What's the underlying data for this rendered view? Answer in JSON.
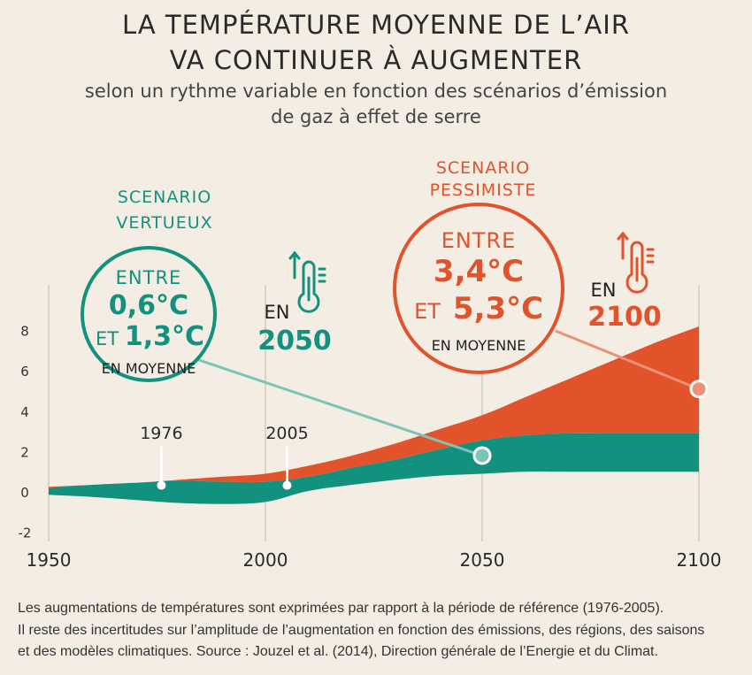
{
  "title_lines": [
    "LA TEMPÉRATURE MOYENNE DE L’AIR",
    "VA CONTINUER À AUGMENTER"
  ],
  "subtitle_lines": [
    "selon un rythme variable en fonction des scénarios d’émission",
    "de gaz à effet de serre"
  ],
  "colors": {
    "green": "#13917f",
    "orange": "#e2532b",
    "axis": "#dcd3c4",
    "background": "#f3ede3",
    "text": "#2a2a2a"
  },
  "chart_data": {
    "type": "area",
    "x_ticks": [
      "1950",
      "2000",
      "2050",
      "2100"
    ],
    "y_ticks": [
      "-2",
      "0",
      "2",
      "4",
      "6",
      "8"
    ],
    "xlim": [
      1950,
      2100
    ],
    "ylim": [
      -2,
      9
    ],
    "series": [
      {
        "color": "#13917f",
        "x": [
          1950,
          1960,
          1970,
          1980,
          1990,
          2000,
          2010,
          2020,
          2030,
          2040,
          2050,
          2060,
          2070,
          2080,
          2090,
          2100
        ],
        "lower": [
          -0.15,
          -0.25,
          -0.4,
          -0.55,
          -0.6,
          -0.5,
          0.05,
          0.35,
          0.6,
          0.8,
          0.9,
          1.0,
          1.0,
          1.0,
          1.0,
          1.0
        ],
        "upper": [
          0.2,
          0.35,
          0.45,
          0.55,
          0.5,
          0.5,
          0.75,
          1.2,
          1.6,
          2.1,
          2.55,
          2.8,
          2.9,
          2.9,
          2.9,
          2.9
        ]
      },
      {
        "color": "#e2532b",
        "x": [
          1950,
          1960,
          1970,
          1980,
          1990,
          2000,
          2010,
          2020,
          2030,
          2040,
          2050,
          2060,
          2070,
          2080,
          2090,
          2100
        ],
        "lower": [
          0.2,
          0.35,
          0.45,
          0.55,
          0.5,
          0.5,
          0.75,
          1.2,
          1.6,
          2.1,
          2.55,
          2.8,
          2.9,
          2.9,
          2.9,
          2.9
        ],
        "upper": [
          0.25,
          0.35,
          0.45,
          0.6,
          0.75,
          0.9,
          1.3,
          1.8,
          2.4,
          3.1,
          3.8,
          4.7,
          5.6,
          6.5,
          7.4,
          8.2
        ]
      }
    ],
    "markers": [
      {
        "label": "1976",
        "x": 1976,
        "y": 0.5
      },
      {
        "label": "2005",
        "x": 2005,
        "y": 0.5
      }
    ],
    "callouts": [
      {
        "id": "vertueux",
        "heading": [
          "SCENARIO",
          "VERTUEUX"
        ],
        "entre": "ENTRE",
        "low": "0,6°C",
        "et": "ET",
        "high": "1,3°C",
        "moyenne": "EN MOYENNE",
        "en": "EN",
        "year": "2050",
        "point": {
          "x": 2050,
          "y": 1.8
        },
        "color": "#13917f"
      },
      {
        "id": "pessimiste",
        "heading": [
          "SCENARIO",
          "PESSIMISTE"
        ],
        "entre": "ENTRE",
        "low": "3,4°C",
        "et": "ET",
        "high": "5,3°C",
        "moyenne": "EN MOYENNE",
        "en": "EN",
        "year": "2100",
        "point": {
          "x": 2100,
          "y": 5.1
        },
        "color": "#e2532b"
      }
    ]
  },
  "footnote_lines": [
    "Les augmentations de températures sont exprimées par rapport à la période de référence (1976-2005).",
    "Il reste des incertitudes sur l’amplitude de l’augmentation en fonction des  émissions, des régions, des saisons",
    "et des modèles climatiques. Source : Jouzel et al. (2014), Direction générale de l’Energie et du Climat."
  ]
}
